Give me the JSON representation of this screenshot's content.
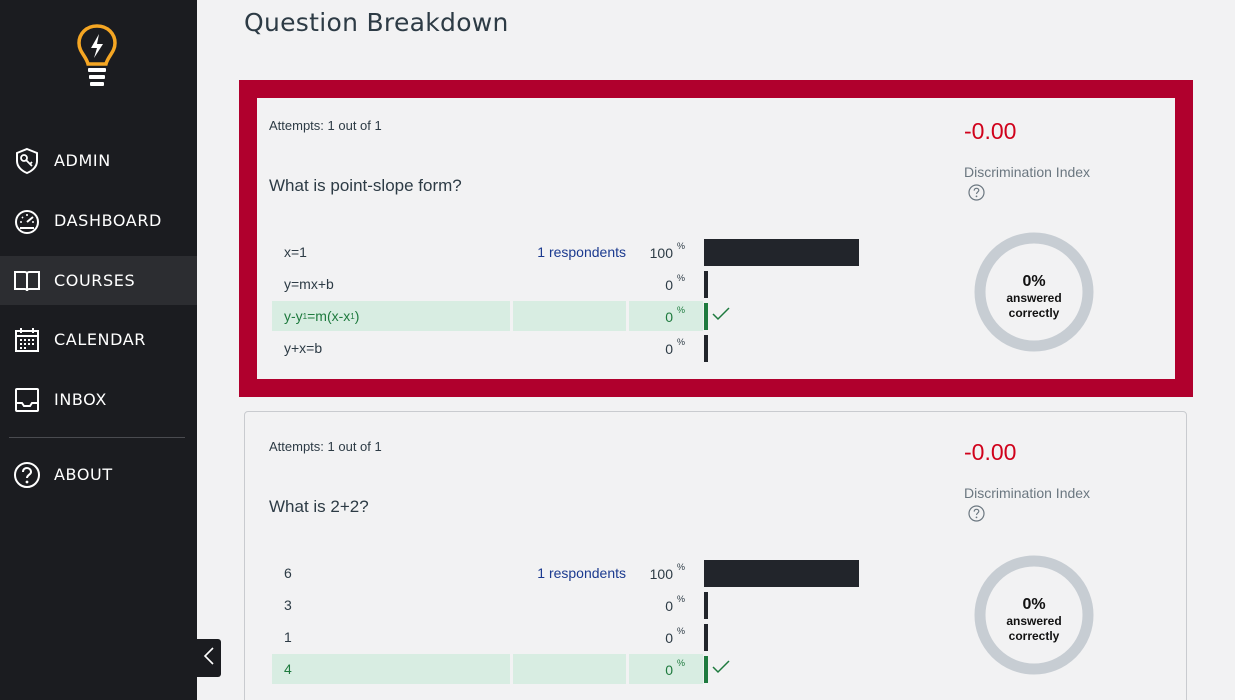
{
  "sidebar": {
    "items": [
      {
        "label": "ADMIN",
        "icon": "shield-key-icon",
        "active": false
      },
      {
        "label": "DASHBOARD",
        "icon": "speedometer-icon",
        "active": false
      },
      {
        "label": "COURSES",
        "icon": "book-icon",
        "active": true
      },
      {
        "label": "CALENDAR",
        "icon": "calendar-icon",
        "active": false
      },
      {
        "label": "INBOX",
        "icon": "inbox-icon",
        "active": false
      },
      {
        "label": "ABOUT",
        "icon": "question-circle-icon",
        "active": false
      }
    ]
  },
  "page": {
    "title": "Question Breakdown"
  },
  "questions": [
    {
      "attempts": "Attempts: 1 out of 1",
      "text": "What is point-slope form?",
      "discrimination_value": "-0.00",
      "discrimination_label": "Discrimination Index",
      "percent_correct": "0%",
      "correct_line1": "answered",
      "correct_line2": "correctly",
      "answers": [
        {
          "text": "x=1",
          "respondents": "1 respondents",
          "percent": "100",
          "fraction": 1.0,
          "correct": false
        },
        {
          "text": "y=mx+b",
          "respondents": "",
          "percent": "0",
          "fraction": 0.0,
          "correct": false
        },
        {
          "text": "y-y",
          "sub1": "1",
          "mid": "=m(x-x",
          "sub2": "1",
          "end": ")",
          "respondents": "",
          "percent": "0",
          "fraction": 0.0,
          "correct": true
        },
        {
          "text": "y+x=b",
          "respondents": "",
          "percent": "0",
          "fraction": 0.0,
          "correct": false
        }
      ]
    },
    {
      "attempts": "Attempts: 1 out of 1",
      "text": "What is 2+2?",
      "discrimination_value": "-0.00",
      "discrimination_label": "Discrimination Index",
      "percent_correct": "0%",
      "correct_line1": "answered",
      "correct_line2": "correctly",
      "answers": [
        {
          "text": "6",
          "respondents": "1 respondents",
          "percent": "100",
          "fraction": 1.0,
          "correct": false
        },
        {
          "text": "3",
          "respondents": "",
          "percent": "0",
          "fraction": 0.0,
          "correct": false
        },
        {
          "text": "1",
          "respondents": "",
          "percent": "0",
          "fraction": 0.0,
          "correct": false
        },
        {
          "text": "4",
          "respondents": "",
          "percent": "0",
          "fraction": 0.0,
          "correct": true
        }
      ]
    }
  ],
  "percent_sign": "%",
  "colors": {
    "sidebar_bg": "#1b1c20",
    "selected_border": "#b0002d",
    "negative_value": "#d0021b",
    "correct_green": "#1e7a3e",
    "correct_bg": "#d8ede2",
    "bar": "#22252b",
    "donut_ring": "#c7cdd3",
    "logo": "#f5a623"
  }
}
